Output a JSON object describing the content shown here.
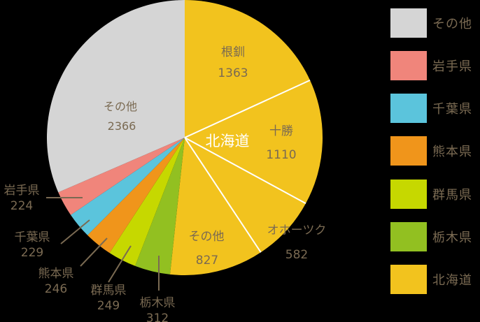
{
  "chart_data": {
    "type": "pie",
    "title": "",
    "start_angle_deg": 0,
    "direction": "clockwise",
    "center": [
      264,
      197
    ],
    "radius": 197,
    "group_label": "北海道",
    "slices": [
      {
        "label": "根釧",
        "value": 1363,
        "color": "#f2c31e",
        "group": "北海道",
        "label_inside": true
      },
      {
        "label": "十勝",
        "value": 1110,
        "color": "#f2c31e",
        "group": "北海道",
        "label_inside": true
      },
      {
        "label": "オホーツク",
        "value": 582,
        "color": "#f2c31e",
        "group": "北海道",
        "label_inside": true
      },
      {
        "label": "その他",
        "value": 827,
        "color": "#f2c31e",
        "group": "北海道",
        "label_inside": true
      },
      {
        "label": "栃木県",
        "value": 312,
        "color": "#92c021",
        "label_inside": false
      },
      {
        "label": "群馬県",
        "value": 249,
        "color": "#c6d800",
        "label_inside": false
      },
      {
        "label": "熊本県",
        "value": 246,
        "color": "#f0951b",
        "label_inside": false
      },
      {
        "label": "千葉県",
        "value": 229,
        "color": "#5bc4dc",
        "label_inside": false
      },
      {
        "label": "岩手県",
        "value": 224,
        "color": "#f0857b",
        "label_inside": false
      },
      {
        "label": "その他",
        "value": 2366,
        "color": "#d5d5d5",
        "label_inside": true
      }
    ],
    "legend": [
      {
        "label": "その他",
        "color": "#d5d5d5"
      },
      {
        "label": "岩手県",
        "color": "#f0857b"
      },
      {
        "label": "千葉県",
        "color": "#5bc4dc"
      },
      {
        "label": "熊本県",
        "color": "#f0951b"
      },
      {
        "label": "群馬県",
        "color": "#c6d800"
      },
      {
        "label": "栃木県",
        "color": "#92c021"
      },
      {
        "label": "北海道",
        "color": "#f2c31e"
      }
    ],
    "legend_position": "right",
    "label_color": "#7a6a52",
    "separator_color": "#ffffff"
  },
  "labels": {
    "konsen": {
      "name": "根釧",
      "value": "1363"
    },
    "tokachi": {
      "name": "十勝",
      "value": "1110"
    },
    "okhotsk": {
      "name": "オホーツク",
      "value": "582"
    },
    "hokkaido_other": {
      "name": "その他",
      "value": "827"
    },
    "other": {
      "name": "その他",
      "value": "2366"
    },
    "hokkaido": "北海道",
    "tochigi": {
      "name": "栃木県",
      "value": "312"
    },
    "gunma": {
      "name": "群馬県",
      "value": "249"
    },
    "kumamoto": {
      "name": "熊本県",
      "value": "246"
    },
    "chiba": {
      "name": "千葉県",
      "value": "229"
    },
    "iwate": {
      "name": "岩手県",
      "value": "224"
    }
  }
}
